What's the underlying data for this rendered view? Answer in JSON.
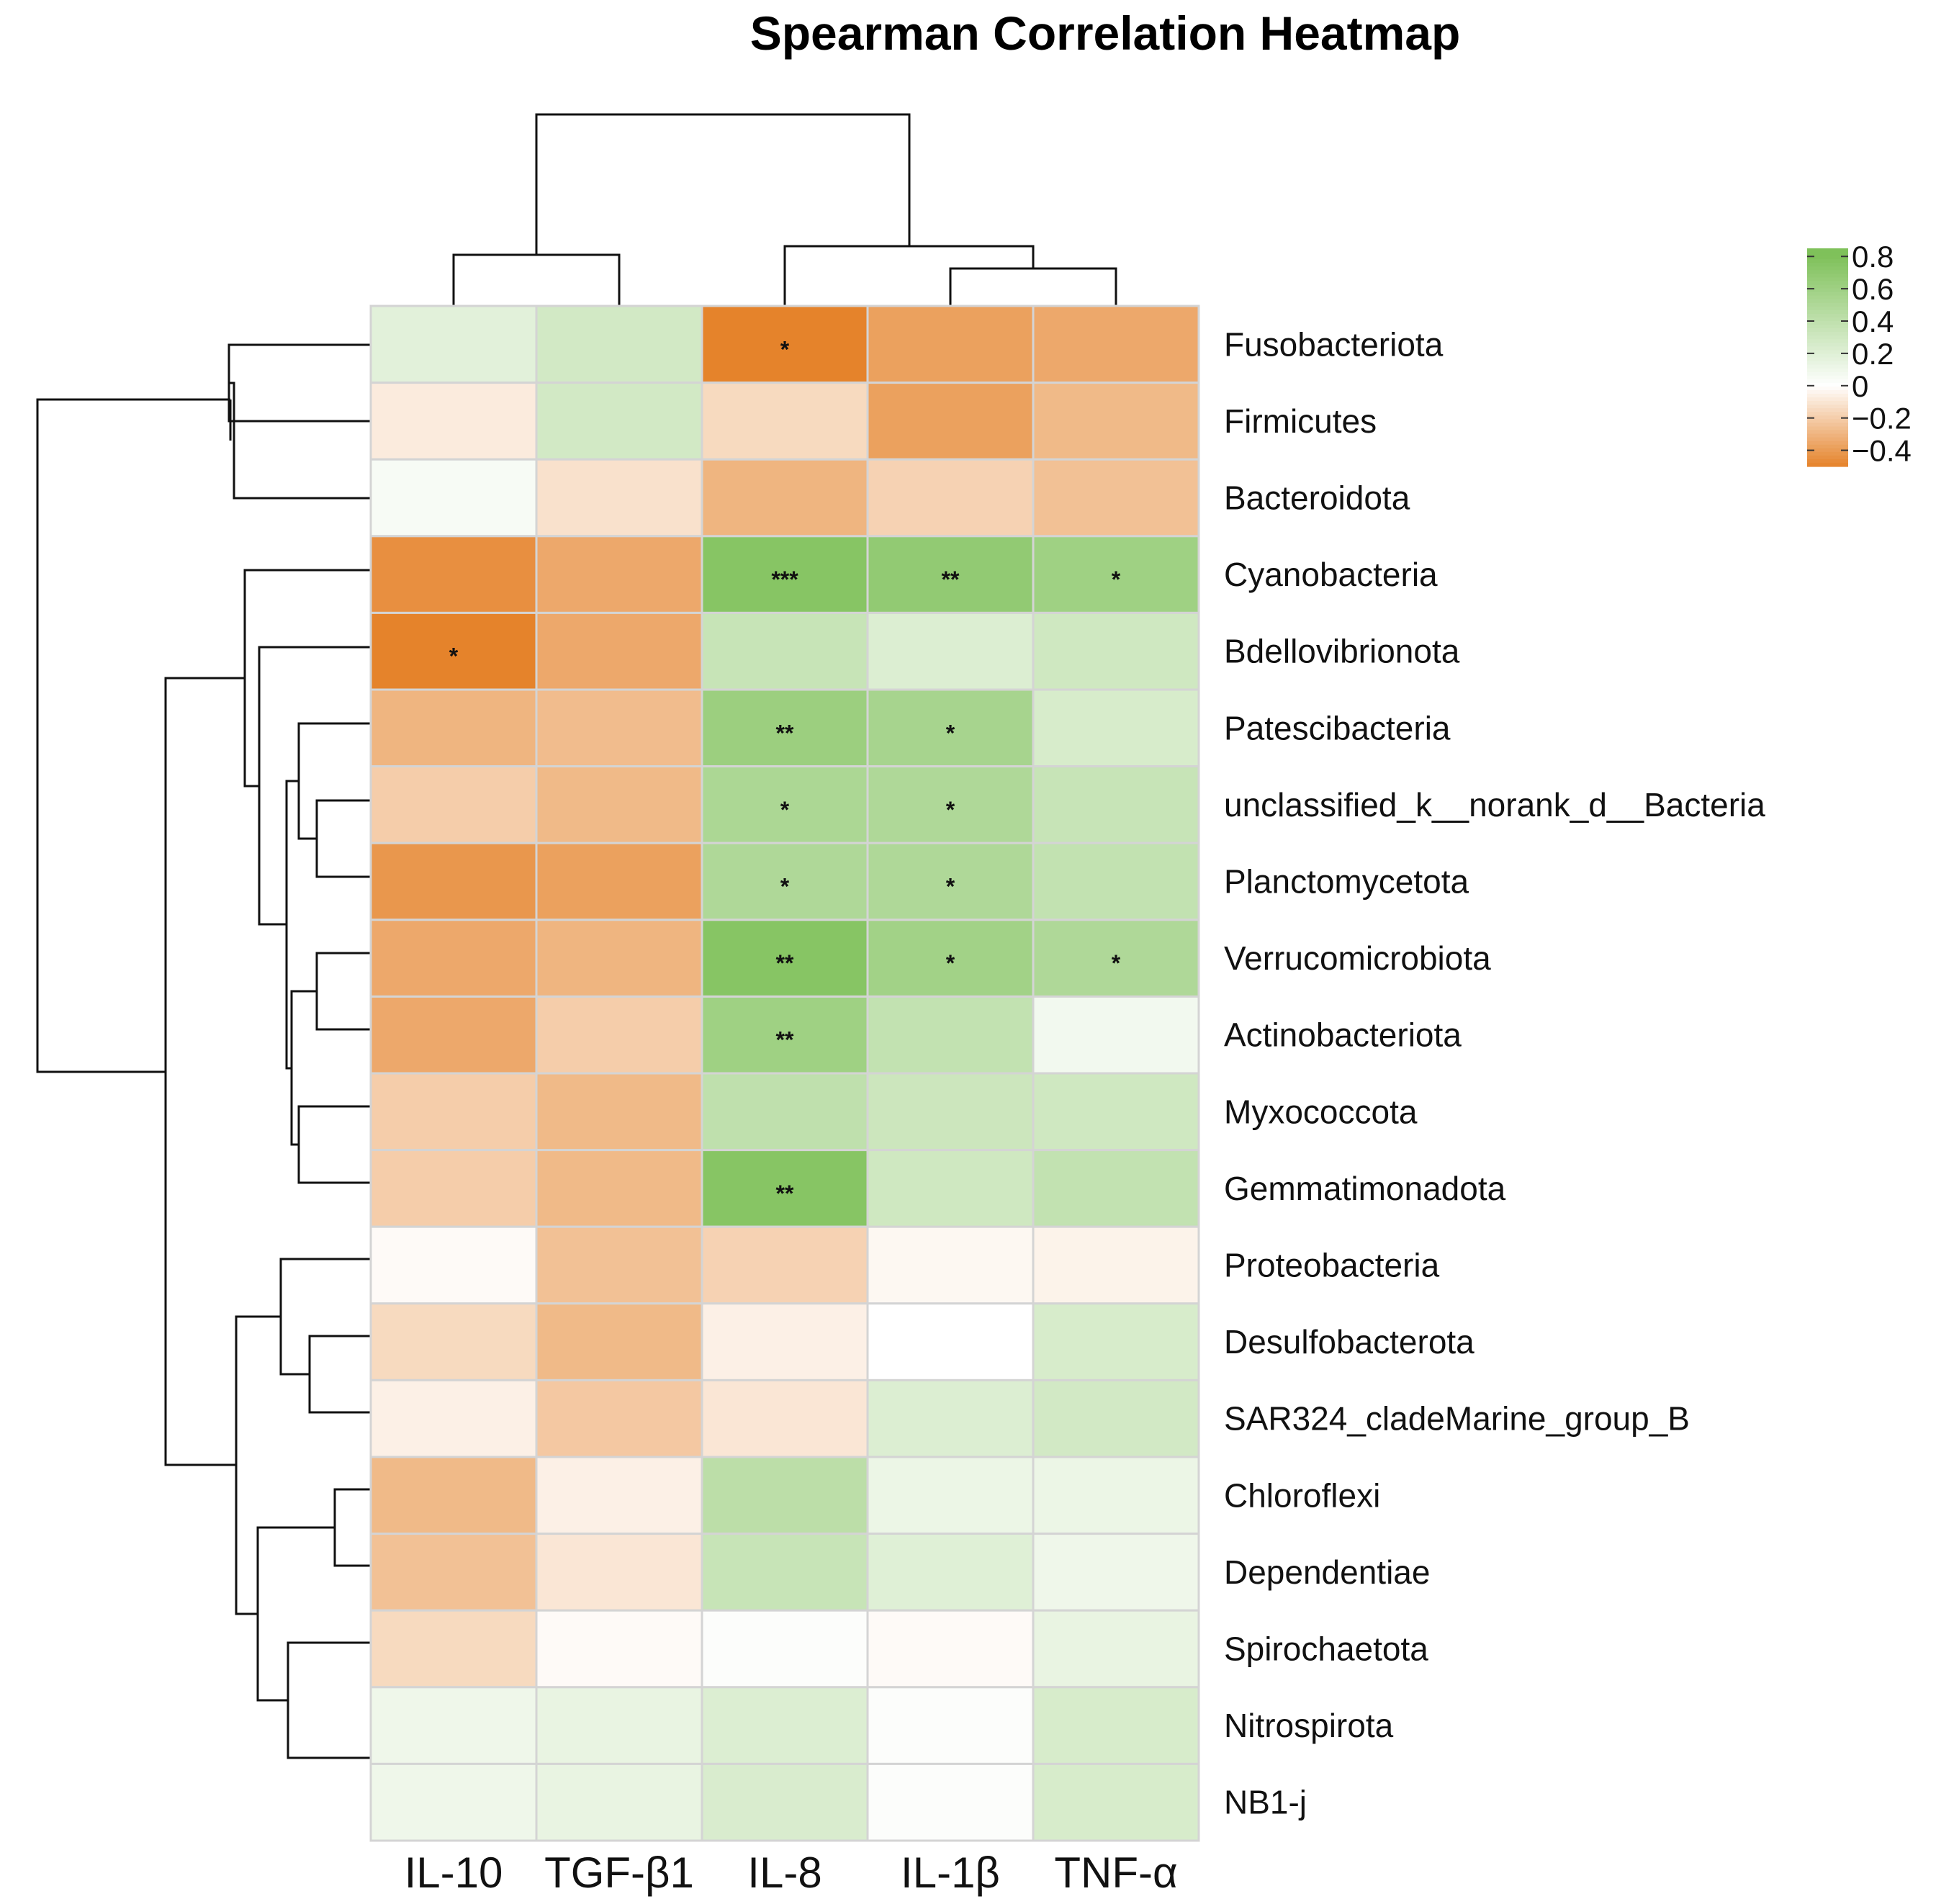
{
  "chart_data": {
    "type": "heatmap",
    "title": "Spearman Correlation Heatmap",
    "columns": [
      "IL-10",
      "TGF-β1",
      "IL-8",
      "IL-1β",
      "TNF-α"
    ],
    "rows": [
      "Fusobacteriota",
      "Firmicutes",
      "Bacteroidota",
      "Cyanobacteria",
      "Bdellovibrionota",
      "Patescibacteria",
      "unclassified_k__norank_d__Bacteria",
      "Planctomycetota",
      "Verrucomicrobiota",
      "Actinobacteriota",
      "Myxococcota",
      "Gemmatimonadota",
      "Proteobacteria",
      "Desulfobacterota",
      "SAR324_cladeMarine_group_B",
      "Chloroflexi",
      "Dependentiae",
      "Spirochaetota",
      "Nitrospirota",
      "NB1-j"
    ],
    "values": [
      [
        0.18,
        0.28,
        -0.5,
        -0.38,
        -0.35
      ],
      [
        -0.08,
        0.28,
        -0.15,
        -0.38,
        -0.28
      ],
      [
        0.05,
        -0.12,
        -0.3,
        -0.18,
        -0.25
      ],
      [
        -0.45,
        -0.35,
        0.75,
        0.68,
        0.6
      ],
      [
        -0.5,
        -0.35,
        0.35,
        0.22,
        0.3
      ],
      [
        -0.3,
        -0.27,
        0.62,
        0.55,
        0.25
      ],
      [
        -0.2,
        -0.28,
        0.52,
        0.5,
        0.35
      ],
      [
        -0.42,
        -0.38,
        0.5,
        0.5,
        0.38
      ],
      [
        -0.35,
        -0.3,
        0.75,
        0.58,
        0.5
      ],
      [
        -0.35,
        -0.2,
        0.6,
        0.38,
        0.08
      ],
      [
        -0.2,
        -0.28,
        0.4,
        0.32,
        0.3
      ],
      [
        -0.2,
        -0.28,
        0.75,
        0.3,
        0.38
      ],
      [
        -0.02,
        -0.25,
        -0.18,
        -0.03,
        -0.05
      ],
      [
        -0.15,
        -0.28,
        -0.06,
        0.0,
        0.25
      ],
      [
        -0.06,
        -0.22,
        -0.1,
        0.22,
        0.28
      ],
      [
        -0.28,
        -0.06,
        0.42,
        0.12,
        0.12
      ],
      [
        -0.25,
        -0.1,
        0.35,
        0.2,
        0.1
      ],
      [
        -0.15,
        -0.02,
        0.02,
        -0.02,
        0.14
      ],
      [
        0.1,
        0.14,
        0.22,
        0.02,
        0.25
      ],
      [
        0.1,
        0.14,
        0.24,
        0.02,
        0.25
      ]
    ],
    "significance": [
      [
        "",
        "",
        "*",
        "",
        ""
      ],
      [
        "",
        "",
        "",
        "",
        ""
      ],
      [
        "",
        "",
        "",
        "",
        ""
      ],
      [
        "",
        "",
        "***",
        "**",
        "*"
      ],
      [
        "*",
        "",
        "",
        "",
        ""
      ],
      [
        "",
        "",
        "**",
        "*",
        ""
      ],
      [
        "",
        "",
        "*",
        "*",
        ""
      ],
      [
        "",
        "",
        "*",
        "*",
        ""
      ],
      [
        "",
        "",
        "**",
        "*",
        "*"
      ],
      [
        "",
        "",
        "**",
        "",
        ""
      ],
      [
        "",
        "",
        "",
        "",
        ""
      ],
      [
        "",
        "",
        "**",
        "",
        ""
      ],
      [
        "",
        "",
        "",
        "",
        ""
      ],
      [
        "",
        "",
        "",
        "",
        ""
      ],
      [
        "",
        "",
        "",
        "",
        ""
      ],
      [
        "",
        "",
        "",
        "",
        ""
      ],
      [
        "",
        "",
        "",
        "",
        ""
      ],
      [
        "",
        "",
        "",
        "",
        ""
      ],
      [
        "",
        "",
        "",
        "",
        ""
      ],
      [
        "",
        "",
        "",
        "",
        ""
      ]
    ],
    "color_scale": {
      "low": -0.5,
      "mid": 0,
      "high": 0.8,
      "low_color": "#e5832b",
      "mid_color": "#ffffff",
      "high_color": "#7fc15a"
    },
    "legend": {
      "ticks": [
        0.8,
        0.6,
        0.4,
        0.2,
        0,
        -0.2,
        -0.4
      ],
      "tick_labels": [
        "0.8",
        "0.6",
        "0.4",
        "0.2",
        "0",
        "−0.2",
        "−0.4"
      ],
      "min": -0.5,
      "max": 0.85,
      "placement": "top-right"
    },
    "grid": true
  }
}
